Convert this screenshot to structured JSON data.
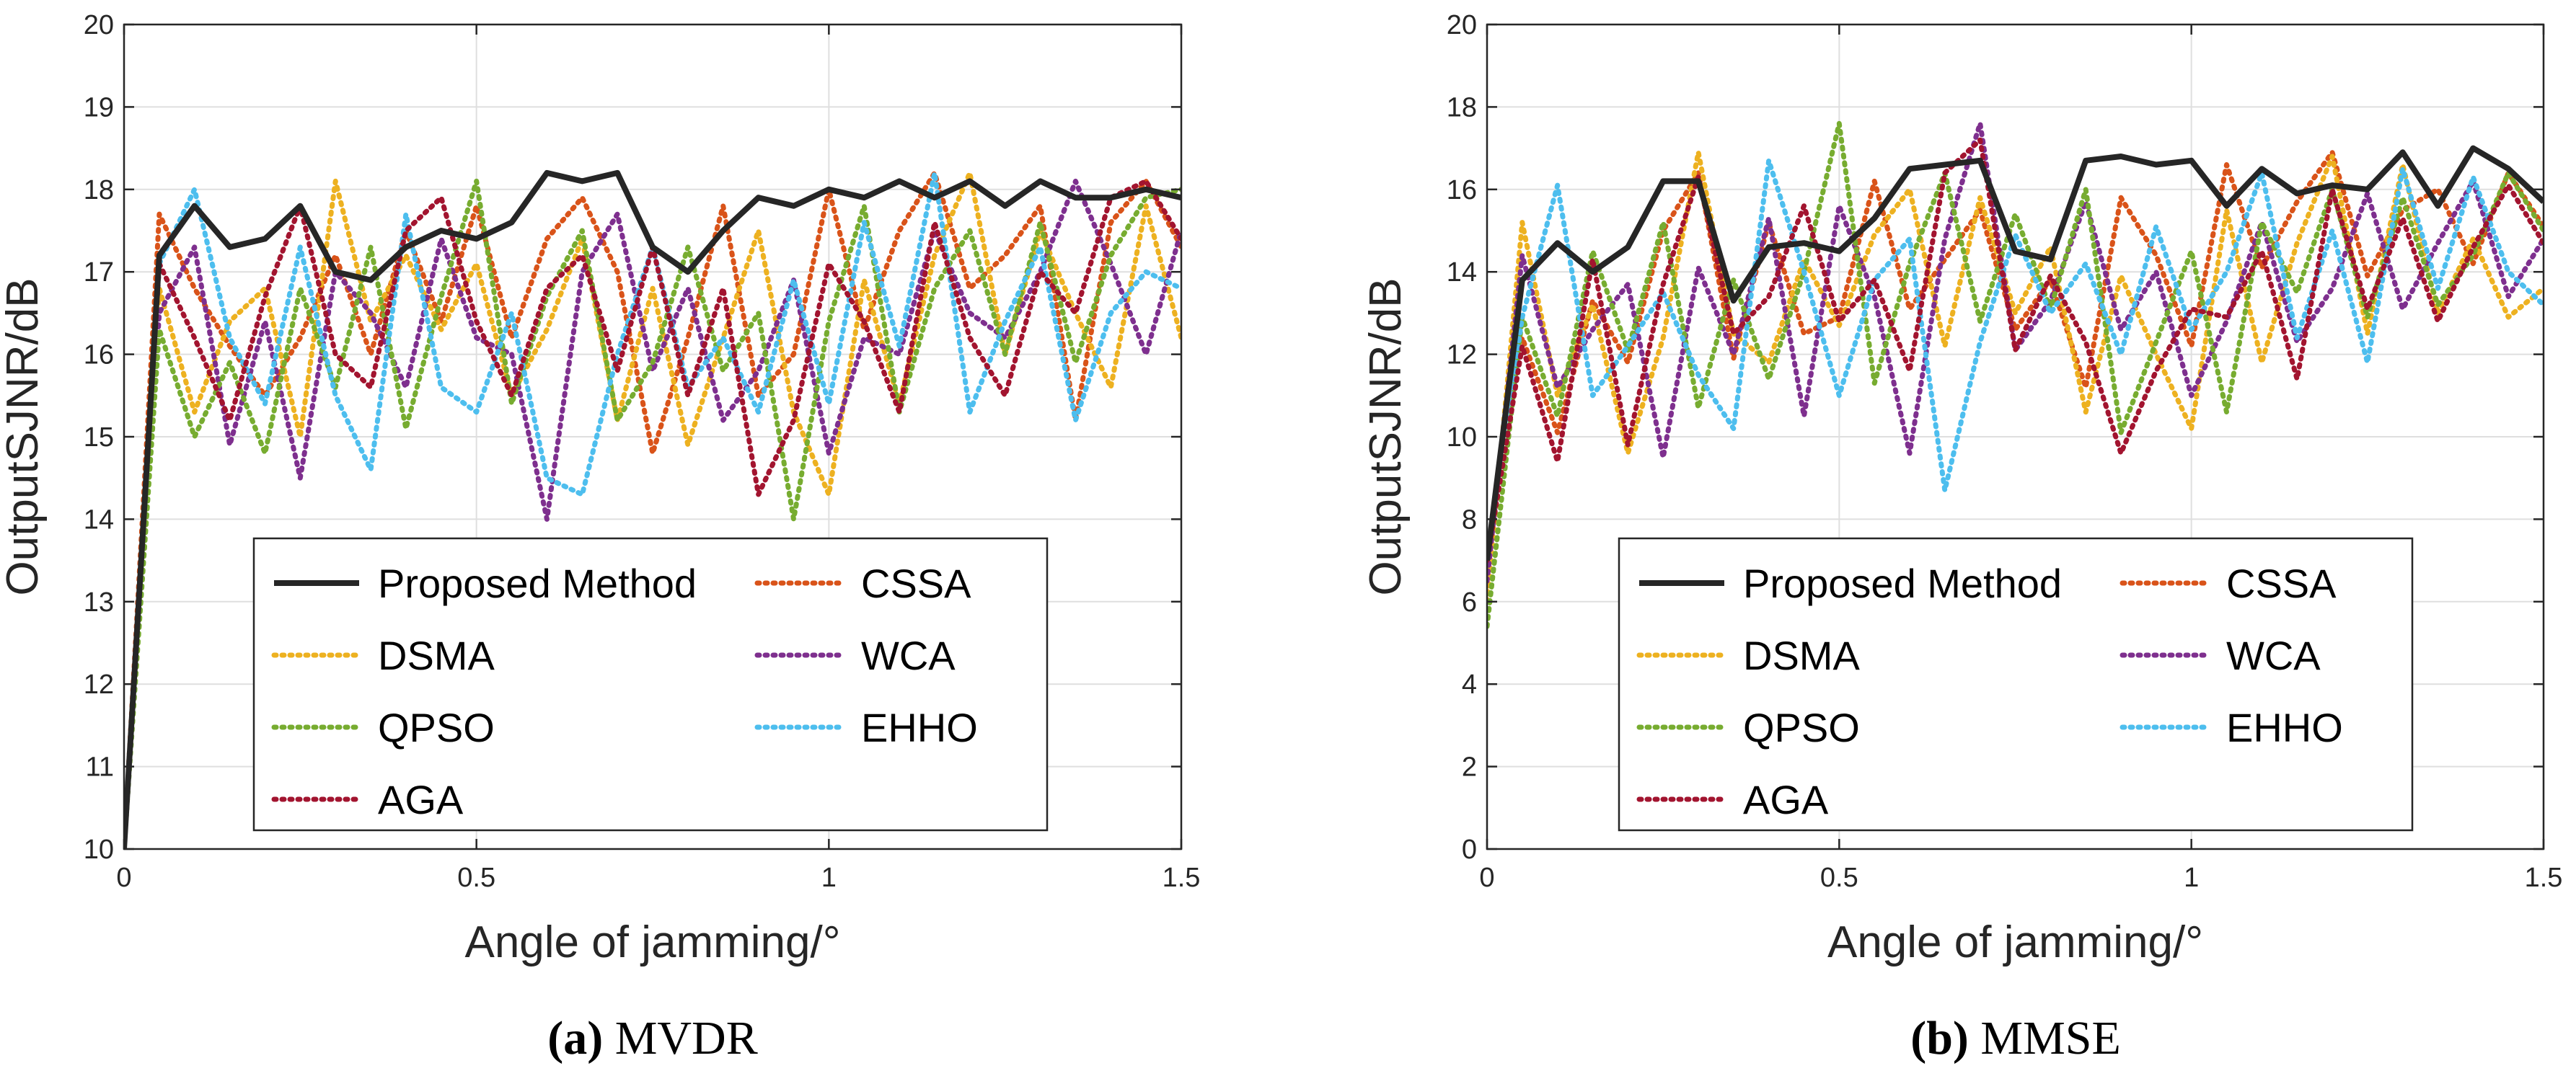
{
  "colors": {
    "proposed": "#262626",
    "cssa": "#D95319",
    "dsma": "#EDB120",
    "wca": "#7E2F8E",
    "qpso": "#77AC30",
    "ehho": "#4DBEEE",
    "aga": "#A2142F"
  },
  "chart_data": [
    {
      "type": "line",
      "panel": "a",
      "caption_bold": "(a)",
      "caption_text": " MVDR",
      "xlabel": "Angle of jamming/°",
      "ylabel": "OutputSJNR/dB",
      "xlim": [
        0,
        1.5
      ],
      "ylim": [
        10,
        20
      ],
      "xticks": [
        0,
        0.5,
        1,
        1.5
      ],
      "xtick_labels": [
        "0",
        "0.5",
        "1",
        "1.5"
      ],
      "yticks": [
        10,
        11,
        12,
        13,
        14,
        15,
        16,
        17,
        18,
        19,
        20
      ],
      "ytick_labels": [
        "10",
        "11",
        "12",
        "13",
        "14",
        "15",
        "16",
        "17",
        "18",
        "19",
        "20"
      ],
      "grid": true,
      "legend_location": "lower-center",
      "x": [
        0,
        0.05,
        0.1,
        0.15,
        0.2,
        0.25,
        0.3,
        0.35,
        0.4,
        0.45,
        0.5,
        0.55,
        0.6,
        0.65,
        0.7,
        0.75,
        0.8,
        0.85,
        0.9,
        0.95,
        1.0,
        1.05,
        1.1,
        1.15,
        1.2,
        1.25,
        1.3,
        1.35,
        1.4,
        1.45,
        1.5
      ],
      "series": [
        {
          "name": "Proposed Method",
          "key": "proposed",
          "style": "solid",
          "values": [
            10,
            17.2,
            17.8,
            17.3,
            17.4,
            17.8,
            17.0,
            16.9,
            17.3,
            17.5,
            17.4,
            17.6,
            18.2,
            18.1,
            18.2,
            17.3,
            17.0,
            17.5,
            17.9,
            17.8,
            18.0,
            17.9,
            18.1,
            17.9,
            18.1,
            17.8,
            18.1,
            17.9,
            17.9,
            18.0,
            17.9
          ]
        },
        {
          "name": "CSSA",
          "key": "cssa",
          "style": "dotted",
          "values": [
            10,
            17.7,
            16.8,
            16.1,
            15.5,
            16.2,
            17.2,
            16.0,
            17.5,
            16.4,
            17.8,
            16.2,
            17.4,
            17.9,
            17.0,
            14.8,
            16.2,
            17.8,
            15.5,
            16.0,
            18.0,
            16.3,
            17.5,
            18.2,
            16.8,
            17.2,
            17.8,
            15.2,
            17.6,
            18.1,
            17.3
          ]
        },
        {
          "name": "DSMA",
          "key": "dsma",
          "style": "dotted",
          "values": [
            10,
            16.8,
            15.3,
            16.4,
            16.8,
            15.0,
            18.1,
            16.4,
            17.2,
            16.3,
            17.1,
            15.5,
            16.3,
            17.4,
            15.2,
            16.8,
            14.9,
            16.2,
            17.5,
            15.3,
            14.3,
            16.9,
            15.4,
            17.2,
            18.2,
            16.0,
            17.5,
            16.5,
            15.6,
            17.8,
            16.2
          ]
        },
        {
          "name": "WCA",
          "key": "wca",
          "style": "dotted",
          "values": [
            10,
            16.5,
            17.3,
            14.9,
            16.4,
            14.5,
            17.0,
            16.5,
            15.6,
            17.4,
            16.2,
            16.0,
            14.0,
            17.0,
            17.7,
            15.8,
            16.8,
            15.2,
            15.8,
            16.9,
            14.8,
            16.2,
            16.0,
            17.5,
            16.5,
            16.2,
            17.0,
            18.1,
            17.1,
            16.0,
            17.5
          ]
        },
        {
          "name": "QPSO",
          "key": "qpso",
          "style": "dotted",
          "values": [
            10,
            16.3,
            15.0,
            15.9,
            14.8,
            16.8,
            15.6,
            17.3,
            15.1,
            16.7,
            18.1,
            15.4,
            16.7,
            17.5,
            15.2,
            15.9,
            17.3,
            15.8,
            16.5,
            14.0,
            16.4,
            17.8,
            15.3,
            16.8,
            17.5,
            16.0,
            17.6,
            15.9,
            17.2,
            17.9,
            18.0
          ]
        },
        {
          "name": "EHHO",
          "key": "ehho",
          "style": "dotted",
          "values": [
            10,
            17.1,
            18.0,
            16.2,
            15.4,
            17.3,
            15.5,
            14.6,
            17.7,
            15.6,
            15.3,
            16.5,
            14.5,
            14.3,
            16.0,
            17.3,
            15.6,
            16.2,
            15.3,
            16.9,
            15.4,
            17.6,
            16.1,
            18.2,
            15.3,
            16.4,
            17.3,
            15.2,
            16.5,
            17.0,
            16.8
          ]
        },
        {
          "name": "AGA",
          "key": "aga",
          "style": "dotted",
          "values": [
            10,
            17.1,
            16.2,
            15.2,
            16.7,
            17.8,
            16.0,
            15.6,
            17.5,
            17.9,
            16.4,
            15.5,
            16.8,
            17.2,
            15.8,
            17.3,
            15.5,
            16.8,
            14.3,
            15.2,
            17.1,
            16.4,
            15.3,
            17.6,
            16.2,
            15.5,
            17.0,
            16.5,
            17.9,
            18.1,
            17.4
          ]
        }
      ]
    },
    {
      "type": "line",
      "panel": "b",
      "caption_bold": "(b)",
      "caption_text": " MMSE",
      "xlabel": "Angle of jamming/°",
      "ylabel": "OutputSJNR/dB",
      "xlim": [
        0,
        1.5
      ],
      "ylim": [
        0,
        20
      ],
      "xticks": [
        0,
        0.5,
        1,
        1.5
      ],
      "xtick_labels": [
        "0",
        "0.5",
        "1",
        "1.5"
      ],
      "yticks": [
        0,
        2,
        4,
        6,
        8,
        10,
        12,
        14,
        16,
        18,
        20
      ],
      "ytick_labels": [
        "0",
        "2",
        "4",
        "6",
        "8",
        "10",
        "12",
        "14",
        "16",
        "18",
        "20"
      ],
      "grid": true,
      "legend_location": "lower-center",
      "x": [
        0,
        0.05,
        0.1,
        0.15,
        0.2,
        0.25,
        0.3,
        0.35,
        0.4,
        0.45,
        0.5,
        0.55,
        0.6,
        0.65,
        0.7,
        0.75,
        0.8,
        0.85,
        0.9,
        0.95,
        1.0,
        1.05,
        1.1,
        1.15,
        1.2,
        1.25,
        1.3,
        1.35,
        1.4,
        1.45,
        1.5
      ],
      "series": [
        {
          "name": "Proposed Method",
          "key": "proposed",
          "style": "solid",
          "values": [
            7,
            13.8,
            14.7,
            14.0,
            14.6,
            16.2,
            16.2,
            13.3,
            14.6,
            14.7,
            14.5,
            15.3,
            16.5,
            16.6,
            16.7,
            14.5,
            14.3,
            16.7,
            16.8,
            16.6,
            16.7,
            15.6,
            16.5,
            15.9,
            16.1,
            16.0,
            16.9,
            15.6,
            17.0,
            16.5,
            15.7
          ]
        },
        {
          "name": "CSSA",
          "key": "cssa",
          "style": "dotted",
          "values": [
            7,
            12.4,
            10.1,
            13.3,
            11.8,
            15.0,
            16.4,
            11.9,
            15.2,
            12.5,
            12.9,
            16.2,
            13.1,
            14.3,
            15.5,
            12.6,
            13.8,
            11.2,
            15.8,
            14.4,
            12.2,
            16.6,
            14.1,
            15.7,
            16.9,
            13.9,
            15.5,
            16.0,
            14.2,
            16.4,
            15.1
          ]
        },
        {
          "name": "DSMA",
          "key": "dsma",
          "style": "dotted",
          "values": [
            6,
            15.2,
            11.0,
            13.2,
            9.6,
            12.4,
            16.9,
            12.5,
            11.8,
            14.3,
            12.7,
            14.9,
            16.0,
            12.2,
            15.8,
            13.0,
            14.6,
            10.6,
            13.9,
            12.0,
            10.2,
            15.5,
            11.8,
            14.7,
            16.8,
            12.5,
            16.6,
            13.0,
            14.8,
            12.9,
            13.6
          ]
        },
        {
          "name": "WCA",
          "key": "wca",
          "style": "dotted",
          "values": [
            6.5,
            14.4,
            11.2,
            12.6,
            13.7,
            9.5,
            14.1,
            12.0,
            15.3,
            10.5,
            15.6,
            13.4,
            9.6,
            14.8,
            17.6,
            12.1,
            13.3,
            15.7,
            12.6,
            14.0,
            11.0,
            12.8,
            15.2,
            12.3,
            13.6,
            15.9,
            13.1,
            14.7,
            16.2,
            13.4,
            14.8
          ]
        },
        {
          "name": "QPSO",
          "key": "qpso",
          "style": "dotted",
          "values": [
            5.4,
            12.9,
            10.5,
            14.5,
            12.1,
            15.2,
            10.7,
            13.8,
            11.4,
            14.0,
            17.6,
            11.3,
            14.2,
            16.4,
            12.8,
            15.4,
            13.1,
            16.0,
            10.1,
            12.3,
            14.5,
            10.6,
            15.2,
            13.5,
            16.0,
            12.9,
            15.8,
            13.2,
            14.4,
            16.4,
            15.0
          ]
        },
        {
          "name": "EHHO",
          "key": "ehho",
          "style": "dotted",
          "values": [
            7,
            12.9,
            16.1,
            11.0,
            12.2,
            13.5,
            11.5,
            10.2,
            16.7,
            14.0,
            11.0,
            13.8,
            14.8,
            8.7,
            12.3,
            14.9,
            13.0,
            14.2,
            12.0,
            15.1,
            12.6,
            14.0,
            16.4,
            12.4,
            15.0,
            11.8,
            16.5,
            13.6,
            16.3,
            14.0,
            13.2
          ]
        },
        {
          "name": "AGA",
          "key": "aga",
          "style": "dotted",
          "values": [
            7,
            12.2,
            9.4,
            14.3,
            9.8,
            13.7,
            16.3,
            12.5,
            13.4,
            15.6,
            12.8,
            13.8,
            11.6,
            16.4,
            17.2,
            12.1,
            13.9,
            12.3,
            9.6,
            11.6,
            13.1,
            12.9,
            14.5,
            11.4,
            16.0,
            13.1,
            15.3,
            12.8,
            14.6,
            16.1,
            14.7
          ]
        }
      ]
    }
  ]
}
